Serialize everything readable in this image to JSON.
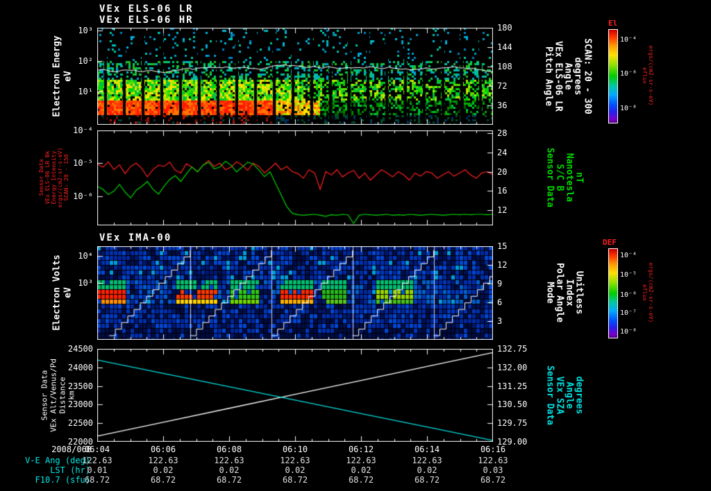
{
  "colors": {
    "background": "#000000",
    "axis": "#ffffff",
    "els_bk_label_red": "#ff2020",
    "bfield_green": "#00d800",
    "sza_cyan": "#00e0e0",
    "info_label_cyan": "#00e8e8",
    "colorbar_title_red": "#ff2020"
  },
  "figure": {
    "date_label": "2008/068",
    "time_ticks": [
      "06:04",
      "06:06",
      "06:08",
      "06:10",
      "06:12",
      "06:14",
      "06:16"
    ],
    "info_rows": [
      {
        "label": "V-E Ang (deg)",
        "values": [
          "122.63",
          "122.63",
          "122.63",
          "122.63",
          "122.63",
          "122.63",
          "122.63"
        ]
      },
      {
        "label": "LST (hr)",
        "values": [
          "0.01",
          "0.02",
          "0.02",
          "0.02",
          "0.02",
          "0.02",
          "0.03"
        ]
      },
      {
        "label": "F10.7 (sfu)",
        "values": [
          "68.72",
          "68.72",
          "68.72",
          "68.72",
          "68.72",
          "68.72",
          "68.72"
        ]
      }
    ]
  },
  "panels": {
    "els": {
      "titles": [
        "VEx ELS-06 LR",
        "VEx ELS-06 HR"
      ],
      "left_label": [
        "Electron Energy",
        "eV"
      ],
      "left_ticks": [
        {
          "label": "10³",
          "f": 0.03
        },
        {
          "label": "10²",
          "f": 0.34
        },
        {
          "label": "10¹",
          "f": 0.66
        }
      ],
      "right_ticks": [
        {
          "label": "180",
          "f": 0.0
        },
        {
          "label": "144",
          "f": 0.2
        },
        {
          "label": "108",
          "f": 0.4
        },
        {
          "label": "72",
          "f": 0.6
        },
        {
          "label": "36",
          "f": 0.8
        }
      ],
      "right_label": [
        "Pitch Angle",
        "VEx ELS-06 LR",
        "Angle",
        "degrees",
        "SCAN: 20 - 300"
      ]
    },
    "bfield": {
      "left_label": [
        "Sensor Data",
        "VEx ELS-06 LR Bk",
        "Energy Intensity",
        "ergs/(cm2-sr-s-eV)",
        "SCAN: 20 - 150"
      ],
      "left_ticks": [
        {
          "label": "10⁻⁴",
          "f": 0.0
        },
        {
          "label": "10⁻⁵",
          "f": 0.345
        },
        {
          "label": "10⁻⁶",
          "f": 0.69
        }
      ],
      "right_ticks": [
        {
          "label": "28",
          "f": 0.03
        },
        {
          "label": "24",
          "f": 0.2325
        },
        {
          "label": "20",
          "f": 0.435
        },
        {
          "label": "16",
          "f": 0.6375
        },
        {
          "label": "12",
          "f": 0.84
        }
      ],
      "right_label": [
        "Sensor Data",
        "S/C B",
        "Nanotesla",
        "nT"
      ]
    },
    "ima": {
      "titles": [
        "VEx IMA-00"
      ],
      "left_label": [
        "Electron Volts",
        "eV"
      ],
      "left_ticks": [
        {
          "label": "10⁴",
          "f": 0.1
        },
        {
          "label": "10³",
          "f": 0.39
        }
      ],
      "right_ticks": [
        {
          "label": "15",
          "f": 0.0
        },
        {
          "label": "12",
          "f": 0.2
        },
        {
          "label": "9",
          "f": 0.4
        },
        {
          "label": "6",
          "f": 0.6
        },
        {
          "label": "3",
          "f": 0.8
        }
      ],
      "right_label": [
        "Mode",
        "Polar Angle",
        "Index",
        "Unitless"
      ]
    },
    "ephem": {
      "left_label": [
        "Sensor Data",
        "VEx Alt/Venus/Pd",
        "Distance",
        "km"
      ],
      "left_ticks": [
        {
          "label": "24500",
          "f": 0.0
        },
        {
          "label": "24000",
          "f": 0.2
        },
        {
          "label": "23500",
          "f": 0.4
        },
        {
          "label": "23000",
          "f": 0.6
        },
        {
          "label": "22500",
          "f": 0.8
        },
        {
          "label": "22000",
          "f": 1.0
        }
      ],
      "right_ticks": [
        {
          "label": "132.75",
          "f": 0.0
        },
        {
          "label": "132.00",
          "f": 0.2
        },
        {
          "label": "131.25",
          "f": 0.4
        },
        {
          "label": "130.50",
          "f": 0.6
        },
        {
          "label": "129.75",
          "f": 0.8
        },
        {
          "label": "129.00",
          "f": 1.0
        }
      ],
      "right_label": [
        "Sensor Data",
        "VEx SZA",
        "Angle",
        "degrees"
      ]
    }
  },
  "colorbars": [
    {
      "title": "El",
      "ticks": [
        {
          "label": "10⁻⁴",
          "f": 0.11
        },
        {
          "label": "10⁻⁶",
          "f": 0.48
        },
        {
          "label": "10⁻⁸",
          "f": 0.85
        }
      ],
      "label": [
        "eflux",
        "ergs/(cm2-sr-s-eV)"
      ]
    },
    {
      "title": "DEF",
      "ticks": [
        {
          "label": "10⁻⁴",
          "f": 0.08
        },
        {
          "label": "10⁻⁵",
          "f": 0.3
        },
        {
          "label": "10⁻⁶",
          "f": 0.52
        },
        {
          "label": "10⁻⁷",
          "f": 0.73
        },
        {
          "label": "10⁻⁸",
          "f": 0.94
        }
      ],
      "label": [
        "eflux",
        "ergs/(cm2-sr-s-eV)"
      ]
    }
  ],
  "chart_data": [
    {
      "type": "heatmap",
      "title": "VEx ELS-06 LR/HR electron energy-time spectrogram with pitch angle axis",
      "x_range": [
        "2008/068 06:04",
        "2008/068 06:16"
      ],
      "ylabel": "Electron Energy (eV)",
      "y_ticks_log10": [
        1,
        2,
        3
      ],
      "right_axis": {
        "label": "Pitch Angle (degrees), SCAN: 20 - 300",
        "ticks": [
          36,
          72,
          108,
          144,
          180
        ]
      },
      "z_axis": {
        "label": "eflux ergs/(cm2-sr-s-eV)",
        "range_log10": [
          -8,
          -4
        ]
      },
      "description": "Intense red band at 4-15 eV from 06:04 to ~06:09:40 fading to green afterwards; dense green/yellow band 10-100 eV strongest on left half; sparse cyan speckle at high energies; periodic vertical black data-gap stripes; jagged white overlay line near 30 eV",
      "bands": [
        {
          "fy": [
            0.0,
            0.33
          ],
          "density": 0.08,
          "colors": [
            "#00b8e0",
            "#00a0c8",
            "#00c8a0",
            "#0080c0"
          ]
        },
        {
          "fy": [
            0.33,
            0.52
          ],
          "density": 0.34,
          "colors": [
            "#00d060",
            "#00c0a0",
            "#20c020",
            "#00a8d0"
          ]
        },
        {
          "fy": [
            0.52,
            0.73
          ],
          "split": 0.52,
          "density": 0.88,
          "density_right": 0.55,
          "colors": [
            "#00d800",
            "#58e000",
            "#b8e800",
            "#00c040"
          ],
          "accent": "#ffe000"
        },
        {
          "fy": [
            0.73,
            0.88
          ],
          "split": 0.45,
          "split2": 0.56,
          "density": 0.95,
          "density_right": 0.42,
          "left_colors": [
            "#ff1800",
            "#ff4000",
            "#ff7800"
          ],
          "mid_colors": [
            "#ffb000",
            "#ffe000",
            "#a0e000",
            "#ff6000"
          ],
          "right_colors": [
            "#00b000",
            "#008800",
            "#00c840",
            "#006000"
          ]
        },
        {
          "fy": [
            0.88,
            1.0
          ],
          "split": 0.45,
          "density": 0.28,
          "left_colors": [
            "#c01000",
            "#801000",
            "#004040"
          ],
          "right_colors": [
            "#004040",
            "#003060",
            "#005020"
          ]
        }
      ],
      "gap_stripes": {
        "start": 10,
        "period": 27,
        "width": 4
      },
      "overlay_line": {
        "color": "#ffffff",
        "fy": 0.44
      }
    },
    {
      "type": "line",
      "title": "ELS-06 LR background energy intensity (red, left log axis) and spacecraft magnetic field S/C B (green, right axis)",
      "x_start": "06:04",
      "x_end": "06:16",
      "x_step_seconds": 10,
      "left_axis_log10_range": [
        -4.0,
        -6.9
      ],
      "right_axis_range": [
        28.6,
        8.9
      ],
      "series": [
        {
          "name": "VEx ELS-06 LR Bk Energy Intensity log10(ergs/(cm2-sr-s-eV))",
          "color": "#ff2020",
          "axis": "left",
          "values": [
            -5.02,
            -5.12,
            -4.96,
            -5.2,
            -5.05,
            -5.32,
            -5.1,
            -5.0,
            -5.16,
            -5.42,
            -5.2,
            -5.06,
            -5.1,
            -4.97,
            -5.22,
            -5.3,
            -5.02,
            -5.12,
            -5.26,
            -5.06,
            -4.92,
            -5.1,
            -5.0,
            -5.2,
            -5.12,
            -4.96,
            -5.06,
            -5.22,
            -5.0,
            -5.1,
            -5.3,
            -5.16,
            -5.0,
            -5.2,
            -5.1,
            -5.26,
            -5.32,
            -5.46,
            -5.2,
            -5.3,
            -5.8,
            -5.26,
            -5.36,
            -5.2,
            -5.42,
            -5.3,
            -5.22,
            -5.46,
            -5.3,
            -5.52,
            -5.36,
            -5.2,
            -5.3,
            -5.42,
            -5.26,
            -5.36,
            -5.52,
            -5.3,
            -5.4,
            -5.26,
            -5.3,
            -5.46,
            -5.36,
            -5.26,
            -5.4,
            -5.3,
            -5.2,
            -5.36,
            -5.46,
            -5.3,
            -5.26,
            -5.36
          ]
        },
        {
          "name": "S/C B (nT)",
          "color": "#00d800",
          "axis": "right",
          "values": [
            17.0,
            16.4,
            15.3,
            16.0,
            17.4,
            15.8,
            14.6,
            16.2,
            17.0,
            18.0,
            16.4,
            15.4,
            17.0,
            18.4,
            19.2,
            18.0,
            19.6,
            21.0,
            20.0,
            21.4,
            22.0,
            20.6,
            21.0,
            22.2,
            21.4,
            20.0,
            21.0,
            22.0,
            21.6,
            20.4,
            19.0,
            20.0,
            17.6,
            15.2,
            12.8,
            11.4,
            11.1,
            11.0,
            11.1,
            11.2,
            11.0,
            10.8,
            11.1,
            11.0,
            11.2,
            11.1,
            9.3,
            11.0,
            11.2,
            11.1,
            11.0,
            11.1,
            11.2,
            11.0,
            11.1,
            11.0,
            11.2,
            11.1,
            11.0,
            11.1,
            11.2,
            11.1,
            11.0,
            11.1,
            11.2,
            11.1,
            11.2,
            11.1,
            11.2,
            11.2,
            11.1,
            11.2
          ]
        }
      ]
    },
    {
      "type": "heatmap",
      "title": "VEx IMA-00 ion energy-time spectrogram with mode/polar-angle index overlay",
      "ylabel": "Electron Volts (eV)",
      "y_ticks_log10": [
        3,
        4
      ],
      "right_axis": {
        "label": "Mode / Polar Angle Index (Unitless)",
        "ticks": [
          3,
          6,
          9,
          12,
          15
        ]
      },
      "z_axis": {
        "label": "DEF eflux ergs/(cm2-sr-s-eV)",
        "range_log10": [
          -8,
          -4
        ]
      },
      "description": "Blue mosaic background; bright red/yellow/green proton band near 1 keV in repeated bursts; white stepped staircase overlay (polar angle scan) repeating ~5 times with vertical reset lines",
      "base_colors": [
        "#001050",
        "#001870",
        "#0028a0",
        "#0038c0",
        "#0048d8",
        "#0030b0",
        "#000c40"
      ],
      "cyan_accent": "#00a0e0",
      "hot_band": {
        "fy": [
          0.34,
          0.62
        ],
        "core": [
          0.42,
          0.52
        ],
        "lower": [
          0.52,
          0.6
        ],
        "upper_color": "#00c070",
        "blobs": [
          {
            "fx": [
              0.0,
              0.07
            ],
            "c": "#ff2000",
            "c2": "#ff9000"
          },
          {
            "fx": [
              0.19,
              0.3
            ],
            "c": "#ff3800",
            "c2": "#ffd000"
          },
          {
            "fx": [
              0.33,
              0.41
            ],
            "c": "#30c818",
            "c2": "#70d800"
          },
          {
            "fx": [
              0.46,
              0.545
            ],
            "c": "#ff2800",
            "c2": "#ffb000"
          },
          {
            "fx": [
              0.56,
              0.63
            ],
            "c": "#28b818",
            "c2": "#58c818"
          },
          {
            "fx": [
              0.7,
              0.79
            ],
            "c": "#98d800",
            "c2": "#48c020"
          }
        ]
      },
      "mode_overlay": {
        "color": "#ffffff",
        "cycle_fraction": 0.205,
        "starts": [
          0.03,
          0.235,
          0.44,
          0.645,
          0.85
        ],
        "steps": 13
      }
    },
    {
      "type": "line",
      "title": "VEx altitude (white, left axis) and solar zenith angle (cyan, right axis)",
      "x": [
        "06:04",
        "06:06",
        "06:08",
        "06:10",
        "06:12",
        "06:14",
        "06:16"
      ],
      "left_axis_range": [
        24500,
        22000
      ],
      "right_axis_range": [
        132.75,
        129.0
      ],
      "series": [
        {
          "name": "VEx Alt/Venus/Pd Distance (km)",
          "color": "#ffffff",
          "axis": "left",
          "values": [
            22150,
            22525,
            22900,
            23275,
            23650,
            24025,
            24400
          ]
        },
        {
          "name": "VEx SZA (degrees)",
          "color": "#00e0e0",
          "axis": "right",
          "values": [
            132.3,
            131.76,
            131.22,
            130.68,
            130.14,
            129.6,
            129.05
          ]
        }
      ]
    }
  ]
}
